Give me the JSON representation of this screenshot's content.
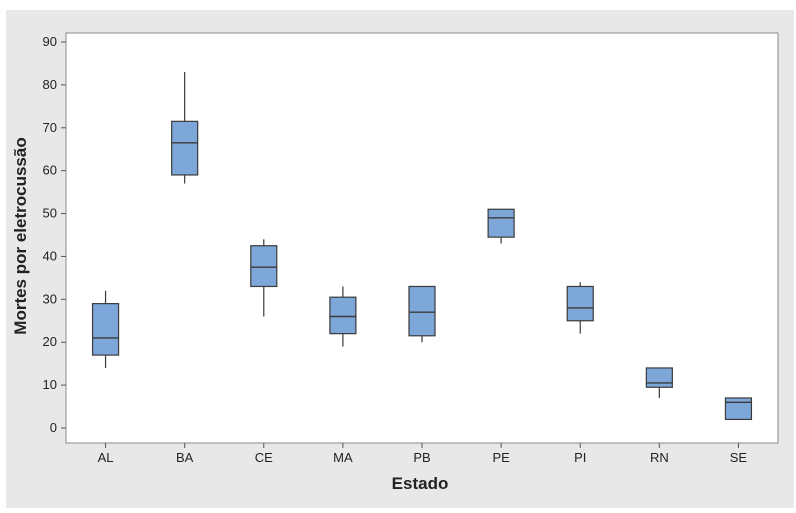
{
  "chart_data": {
    "type": "boxplot",
    "title": "",
    "xlabel": "Estado",
    "ylabel": "Mortes por eletrocussão",
    "ylim": [
      0,
      90
    ],
    "yticks": [
      "0",
      "10",
      "20",
      "30",
      "40",
      "50",
      "60",
      "70",
      "80",
      "90"
    ],
    "grid": false,
    "box_color": "#7da7d9",
    "line_color": "#3a3a3a",
    "categories": [
      "AL",
      "BA",
      "CE",
      "MA",
      "PB",
      "PE",
      "PI",
      "RN",
      "SE"
    ],
    "boxes": [
      {
        "category": "AL",
        "min": 14,
        "q1": 17,
        "median": 21,
        "q3": 29,
        "max": 32
      },
      {
        "category": "BA",
        "min": 57,
        "q1": 59,
        "median": 66.5,
        "q3": 71.5,
        "max": 83
      },
      {
        "category": "CE",
        "min": 26,
        "q1": 33,
        "median": 37.5,
        "q3": 42.5,
        "max": 44
      },
      {
        "category": "MA",
        "min": 19,
        "q1": 22,
        "median": 26,
        "q3": 30.5,
        "max": 33
      },
      {
        "category": "PB",
        "min": 20,
        "q1": 21.5,
        "median": 27,
        "q3": 33,
        "max": 33
      },
      {
        "category": "PE",
        "min": 43,
        "q1": 44.5,
        "median": 49,
        "q3": 51,
        "max": 51
      },
      {
        "category": "PI",
        "min": 22,
        "q1": 25,
        "median": 28,
        "q3": 33,
        "max": 34
      },
      {
        "category": "RN",
        "min": 7,
        "q1": 9.5,
        "median": 10.5,
        "q3": 14,
        "max": 14
      },
      {
        "category": "SE",
        "min": 2,
        "q1": 2,
        "median": 6,
        "q3": 7,
        "max": 7
      }
    ]
  }
}
